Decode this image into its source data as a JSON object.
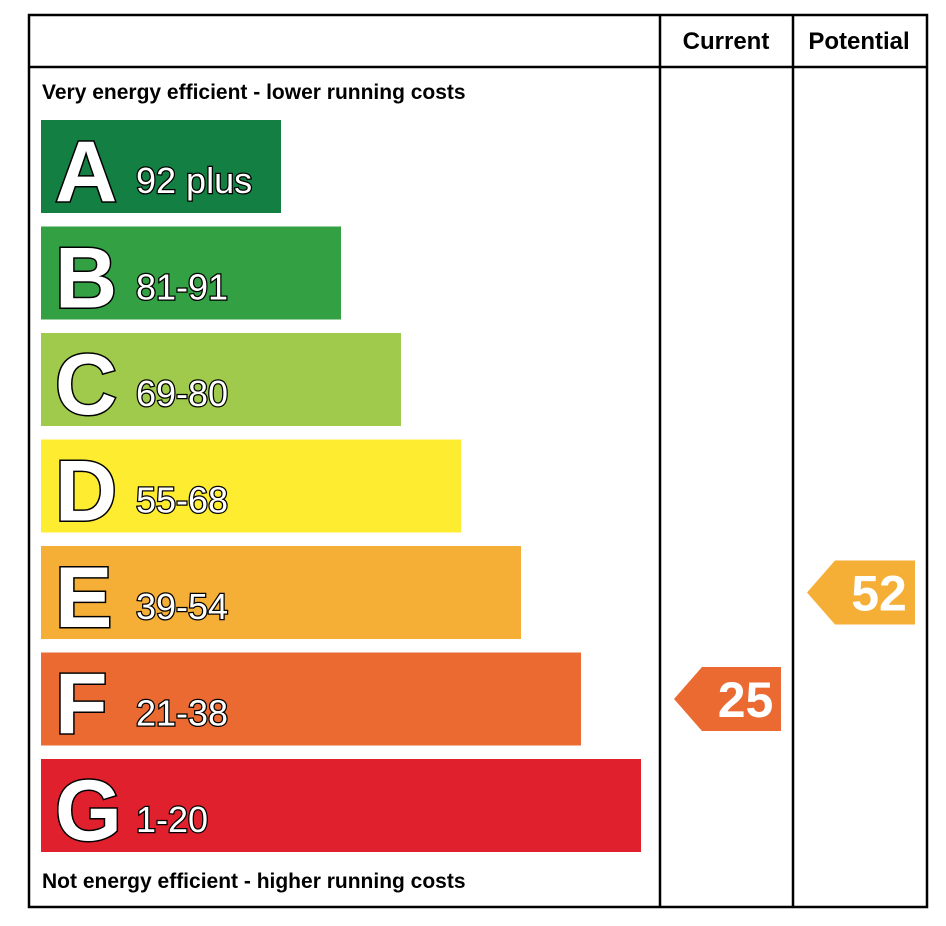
{
  "chart_data": {
    "type": "bar",
    "header": {
      "current": "Current",
      "potential": "Potential"
    },
    "top_note": "Very energy efficient - lower running costs",
    "bottom_note": "Not energy efficient - higher running costs",
    "bands": [
      {
        "letter": "A",
        "range": "92 plus",
        "color": "#137f42"
      },
      {
        "letter": "B",
        "range": "81-91",
        "color": "#33a043"
      },
      {
        "letter": "C",
        "range": "69-80",
        "color": "#9fca4b"
      },
      {
        "letter": "D",
        "range": "55-68",
        "color": "#feec31"
      },
      {
        "letter": "E",
        "range": "39-54",
        "color": "#f5ae36"
      },
      {
        "letter": "F",
        "range": "21-38",
        "color": "#ea6a32"
      },
      {
        "letter": "G",
        "range": "1-20",
        "color": "#e0212d"
      }
    ],
    "current": {
      "value": 25,
      "band": "F",
      "color": "#ea6a32"
    },
    "potential": {
      "value": 52,
      "band": "E",
      "color": "#f5ae36"
    }
  }
}
